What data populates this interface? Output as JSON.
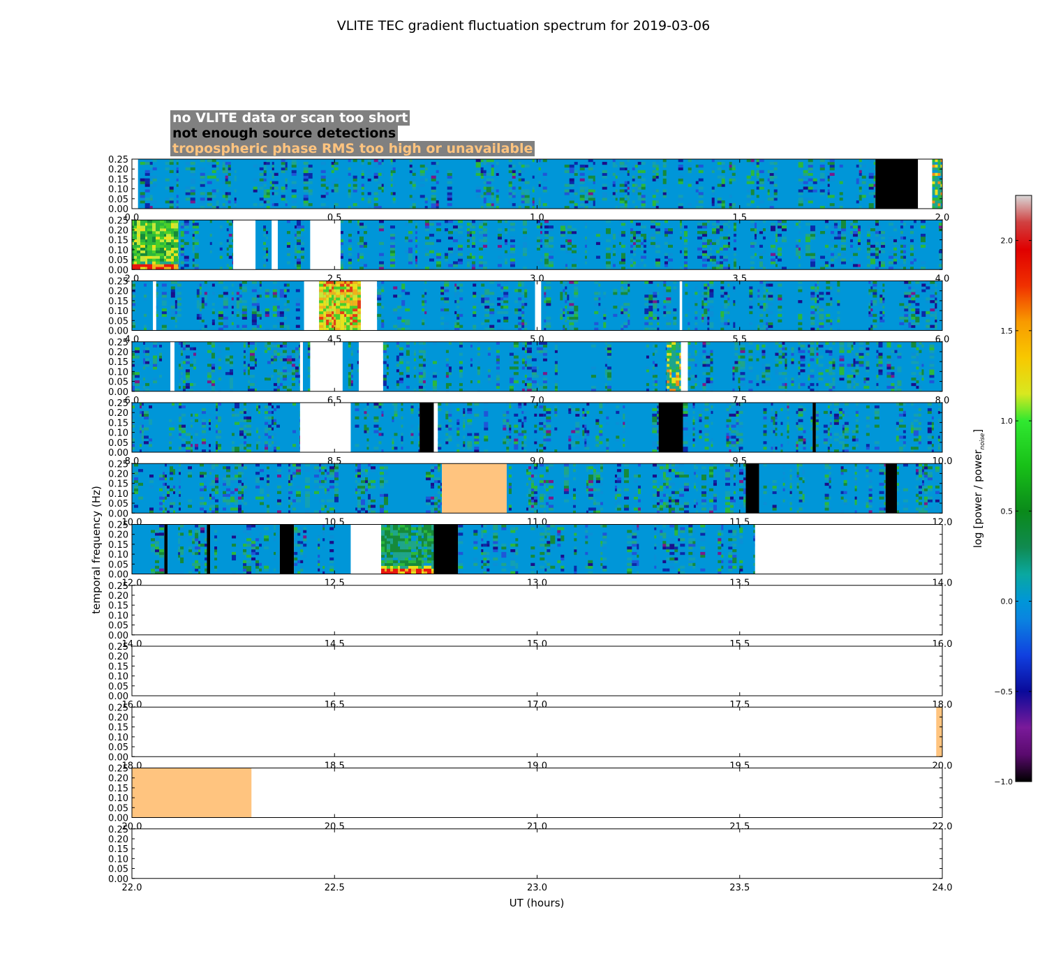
{
  "chart_data": {
    "type": "heatmap",
    "title": "VLITE TEC gradient fluctuation spectrum for 2019-03-06",
    "xlabel": "UT (hours)",
    "ylabel": "temporal frequency (Hz)",
    "ylim": [
      0,
      0.25
    ],
    "yticks": [
      "0.00",
      "0.05",
      "0.10",
      "0.15",
      "0.20",
      "0.25"
    ],
    "colorbar": {
      "label": "log [power / power",
      "label_sub": "noise",
      "label_close": "]",
      "range": [
        -1.0,
        2.25
      ],
      "ticks": [
        "−1.0",
        "−0.5",
        "0.0",
        "0.5",
        "1.0",
        "1.5",
        "2.0"
      ],
      "tick_values": [
        -1.0,
        -0.5,
        0.0,
        0.5,
        1.0,
        1.5,
        2.0
      ]
    },
    "legend": {
      "no_data": "no VLITE data or scan too short",
      "no_detections": "not enough source detections",
      "tropo": "tropospheric phase RMS too high or unavailable"
    },
    "panels": [
      {
        "xlim": [
          0,
          2
        ],
        "ticks": [
          "0.0",
          "0.5",
          "1.0",
          "1.5",
          "2.0"
        ],
        "segments": [
          {
            "type": "nodata",
            "x0": 0.0,
            "x1": 0.015
          },
          {
            "type": "data",
            "x0": 0.015,
            "x1": 1.835
          },
          {
            "type": "nodet",
            "x0": 1.835,
            "x1": 1.94
          },
          {
            "type": "nodata",
            "x0": 1.94,
            "x1": 1.975
          },
          {
            "type": "data",
            "x0": 1.975,
            "x1": 2.0,
            "hot": 1
          }
        ]
      },
      {
        "xlim": [
          2,
          4
        ],
        "ticks": [
          "2.0",
          "2.5",
          "3.0",
          "3.5",
          "4.0"
        ],
        "segments": [
          {
            "type": "data",
            "x0": 2.0,
            "x1": 2.115,
            "hot": 2
          },
          {
            "type": "data",
            "x0": 2.115,
            "x1": 2.25
          },
          {
            "type": "nodata",
            "x0": 2.25,
            "x1": 2.305
          },
          {
            "type": "data",
            "x0": 2.305,
            "x1": 2.345
          },
          {
            "type": "nodata",
            "x0": 2.345,
            "x1": 2.36
          },
          {
            "type": "data",
            "x0": 2.36,
            "x1": 2.44
          },
          {
            "type": "nodata",
            "x0": 2.44,
            "x1": 2.515
          },
          {
            "type": "data",
            "x0": 2.515,
            "x1": 4.0
          }
        ]
      },
      {
        "xlim": [
          4,
          6
        ],
        "ticks": [
          "4.0",
          "4.5",
          "5.0",
          "5.5",
          "6.0"
        ],
        "segments": [
          {
            "type": "data",
            "x0": 4.0,
            "x1": 4.052
          },
          {
            "type": "nodata",
            "x0": 4.052,
            "x1": 4.06
          },
          {
            "type": "data",
            "x0": 4.06,
            "x1": 4.425
          },
          {
            "type": "nodata",
            "x0": 4.425,
            "x1": 4.462
          },
          {
            "type": "data",
            "x0": 4.462,
            "x1": 4.565,
            "hot": 3
          },
          {
            "type": "nodata",
            "x0": 4.565,
            "x1": 4.605
          },
          {
            "type": "data",
            "x0": 4.605,
            "x1": 4.995
          },
          {
            "type": "nodata",
            "x0": 4.995,
            "x1": 5.01
          },
          {
            "type": "data",
            "x0": 5.01,
            "x1": 5.352
          },
          {
            "type": "nodata",
            "x0": 5.352,
            "x1": 5.358
          },
          {
            "type": "data",
            "x0": 5.358,
            "x1": 6.0
          }
        ]
      },
      {
        "xlim": [
          6,
          8
        ],
        "ticks": [
          "6.0",
          "6.5",
          "7.0",
          "7.5",
          "8.0"
        ],
        "segments": [
          {
            "type": "data",
            "x0": 6.0,
            "x1": 6.095
          },
          {
            "type": "nodata",
            "x0": 6.095,
            "x1": 6.105
          },
          {
            "type": "data",
            "x0": 6.105,
            "x1": 6.415
          },
          {
            "type": "nodata",
            "x0": 6.415,
            "x1": 6.422
          },
          {
            "type": "data",
            "x0": 6.422,
            "x1": 6.44
          },
          {
            "type": "nodata",
            "x0": 6.44,
            "x1": 6.52
          },
          {
            "type": "data",
            "x0": 6.52,
            "x1": 6.56
          },
          {
            "type": "nodata",
            "x0": 6.56,
            "x1": 6.62
          },
          {
            "type": "data",
            "x0": 6.62,
            "x1": 7.32
          },
          {
            "type": "data",
            "x0": 7.32,
            "x1": 7.355,
            "hot": 1
          },
          {
            "type": "nodata",
            "x0": 7.355,
            "x1": 7.372
          },
          {
            "type": "data",
            "x0": 7.372,
            "x1": 8.0
          }
        ]
      },
      {
        "xlim": [
          8,
          10
        ],
        "ticks": [
          "8.0",
          "8.5",
          "9.0",
          "9.5",
          "10.0"
        ],
        "segments": [
          {
            "type": "data",
            "x0": 8.0,
            "x1": 8.415
          },
          {
            "type": "nodata",
            "x0": 8.415,
            "x1": 8.54
          },
          {
            "type": "data",
            "x0": 8.54,
            "x1": 8.71
          },
          {
            "type": "nodet",
            "x0": 8.71,
            "x1": 8.745
          },
          {
            "type": "nodata",
            "x0": 8.745,
            "x1": 8.755
          },
          {
            "type": "data",
            "x0": 8.755,
            "x1": 9.3
          },
          {
            "type": "nodet",
            "x0": 9.3,
            "x1": 9.36
          },
          {
            "type": "data",
            "x0": 9.36,
            "x1": 9.68
          },
          {
            "type": "nodet",
            "x0": 9.68,
            "x1": 9.688
          },
          {
            "type": "data",
            "x0": 9.688,
            "x1": 10.0
          }
        ]
      },
      {
        "xlim": [
          10,
          12
        ],
        "ticks": [
          "10.0",
          "10.5",
          "11.0",
          "11.5",
          "12.0"
        ],
        "segments": [
          {
            "type": "data",
            "x0": 10.0,
            "x1": 10.765
          },
          {
            "type": "tropo",
            "x0": 10.765,
            "x1": 10.925
          },
          {
            "type": "data",
            "x0": 10.925,
            "x1": 11.515
          },
          {
            "type": "nodet",
            "x0": 11.515,
            "x1": 11.548
          },
          {
            "type": "data",
            "x0": 11.548,
            "x1": 11.86
          },
          {
            "type": "nodet",
            "x0": 11.86,
            "x1": 11.888
          },
          {
            "type": "data",
            "x0": 11.888,
            "x1": 12.0
          }
        ]
      },
      {
        "xlim": [
          12,
          14
        ],
        "ticks": [
          "12.0",
          "12.5",
          "13.0",
          "13.5",
          "14.0"
        ],
        "segments": [
          {
            "type": "data",
            "x0": 12.0,
            "x1": 12.08
          },
          {
            "type": "nodet",
            "x0": 12.08,
            "x1": 12.088
          },
          {
            "type": "data",
            "x0": 12.088,
            "x1": 12.185
          },
          {
            "type": "nodet",
            "x0": 12.185,
            "x1": 12.193
          },
          {
            "type": "data",
            "x0": 12.193,
            "x1": 12.365
          },
          {
            "type": "nodet",
            "x0": 12.365,
            "x1": 12.4
          },
          {
            "type": "data",
            "x0": 12.4,
            "x1": 12.54
          },
          {
            "type": "nodata",
            "x0": 12.54,
            "x1": 12.615
          },
          {
            "type": "data",
            "x0": 12.615,
            "x1": 12.745,
            "hot": 4
          },
          {
            "type": "nodet",
            "x0": 12.745,
            "x1": 12.805
          },
          {
            "type": "data",
            "x0": 12.805,
            "x1": 13.538
          },
          {
            "type": "nodata",
            "x0": 13.538,
            "x1": 14.0
          }
        ]
      },
      {
        "xlim": [
          14,
          16
        ],
        "ticks": [
          "14.0",
          "14.5",
          "15.0",
          "15.5",
          "16.0"
        ],
        "segments": []
      },
      {
        "xlim": [
          16,
          18
        ],
        "ticks": [
          "16.0",
          "16.5",
          "17.0",
          "17.5",
          "18.0"
        ],
        "segments": []
      },
      {
        "xlim": [
          18,
          20
        ],
        "ticks": [
          "18.0",
          "18.5",
          "19.0",
          "19.5",
          "20.0"
        ],
        "segments": [
          {
            "type": "tropo",
            "x0": 19.985,
            "x1": 20.0
          }
        ]
      },
      {
        "xlim": [
          20,
          22
        ],
        "ticks": [
          "20.0",
          "20.5",
          "21.0",
          "21.5",
          "22.0"
        ],
        "segments": [
          {
            "type": "tropo",
            "x0": 20.0,
            "x1": 20.295
          }
        ]
      },
      {
        "xlim": [
          22,
          24
        ],
        "ticks": [
          "22.0",
          "22.5",
          "23.0",
          "23.5",
          "24.0"
        ],
        "segments": []
      }
    ]
  }
}
